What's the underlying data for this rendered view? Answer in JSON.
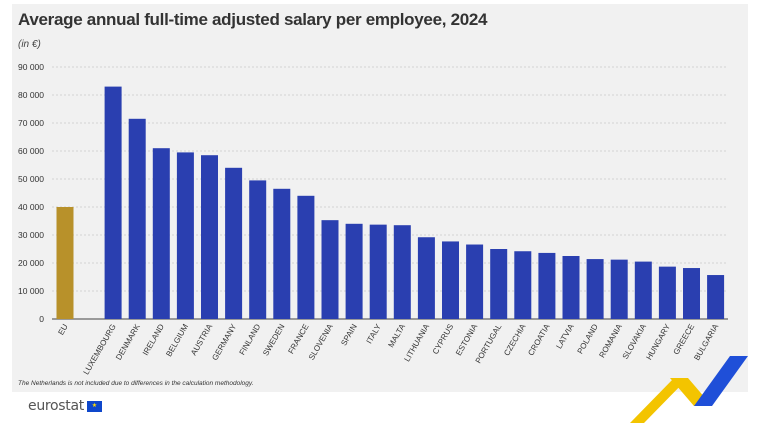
{
  "title": "Average annual full-time adjusted salary per employee, 2024",
  "unit_note": "(in €)",
  "footnote": "The Netherlands is not included due to differences in the calculation methodology.",
  "logo": {
    "text": "eurostat",
    "icon": "eu-flag-icon"
  },
  "colors": {
    "eu_bar": "#b8912a",
    "country_bar": "#2a3fb0",
    "grid": "#c8c8c8",
    "background": "#f1f1f1"
  },
  "chart_data": {
    "type": "bar",
    "title": "Average annual full-time adjusted salary per employee, 2024",
    "ylabel": "(in €)",
    "ylim": [
      0,
      90000
    ],
    "yticks": [
      "0",
      "10 000",
      "20 000",
      "30 000",
      "40 000",
      "50 000",
      "60 000",
      "70 000",
      "80 000",
      "90 000"
    ],
    "grid": true,
    "categories": [
      "EU",
      "LUXEMBOURG",
      "DENMARK",
      "IRELAND",
      "BELGIUM",
      "AUSTRIA",
      "GERMANY",
      "FINLAND",
      "SWEDEN",
      "FRANCE",
      "SLOVENIA",
      "SPAIN",
      "ITALY",
      "MALTA",
      "LITHUANIA",
      "CYPRUS",
      "ESTONIA",
      "PORTUGAL",
      "CZECHIA",
      "CROATIA",
      "LATVIA",
      "POLAND",
      "ROMANIA",
      "SLOVAKIA",
      "HUNGARY",
      "GREECE",
      "BULGARIA"
    ],
    "values": [
      40000,
      83000,
      71500,
      61000,
      59500,
      58500,
      54000,
      49500,
      46500,
      44000,
      35300,
      34000,
      33700,
      33500,
      29200,
      27700,
      26600,
      25000,
      24200,
      23600,
      22500,
      21400,
      21200,
      20500,
      18700,
      18200,
      15700
    ]
  }
}
